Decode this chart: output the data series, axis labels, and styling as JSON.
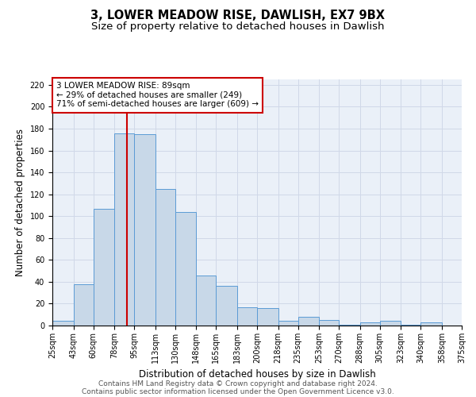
{
  "title": "3, LOWER MEADOW RISE, DAWLISH, EX7 9BX",
  "subtitle": "Size of property relative to detached houses in Dawlish",
  "xlabel": "Distribution of detached houses by size in Dawlish",
  "ylabel": "Number of detached properties",
  "bin_edges": [
    25,
    43,
    60,
    78,
    95,
    113,
    130,
    148,
    165,
    183,
    200,
    218,
    235,
    253,
    270,
    288,
    305,
    323,
    340,
    358,
    375
  ],
  "bin_labels": [
    "25sqm",
    "43sqm",
    "60sqm",
    "78sqm",
    "95sqm",
    "113sqm",
    "130sqm",
    "148sqm",
    "165sqm",
    "183sqm",
    "200sqm",
    "218sqm",
    "235sqm",
    "253sqm",
    "270sqm",
    "288sqm",
    "305sqm",
    "323sqm",
    "340sqm",
    "358sqm",
    "375sqm"
  ],
  "counts": [
    4,
    38,
    107,
    176,
    175,
    125,
    104,
    46,
    36,
    17,
    16,
    4,
    8,
    5,
    1,
    3,
    4,
    1,
    3,
    0
  ],
  "bar_color": "#c8d8e8",
  "bar_edge_color": "#5b9bd5",
  "vline_x": 89,
  "vline_color": "#cc0000",
  "annotation_line1": "3 LOWER MEADOW RISE: 89sqm",
  "annotation_line2": "← 29% of detached houses are smaller (249)",
  "annotation_line3": "71% of semi-detached houses are larger (609) →",
  "annotation_box_edge": "#cc0000",
  "ylim": [
    0,
    225
  ],
  "yticks": [
    0,
    20,
    40,
    60,
    80,
    100,
    120,
    140,
    160,
    180,
    200,
    220
  ],
  "grid_color": "#d0d8e8",
  "footer_line1": "Contains HM Land Registry data © Crown copyright and database right 2024.",
  "footer_line2": "Contains public sector information licensed under the Open Government Licence v3.0.",
  "title_fontsize": 10.5,
  "subtitle_fontsize": 9.5,
  "label_fontsize": 8.5,
  "tick_fontsize": 7,
  "footer_fontsize": 6.5,
  "annot_fontsize": 7.5
}
